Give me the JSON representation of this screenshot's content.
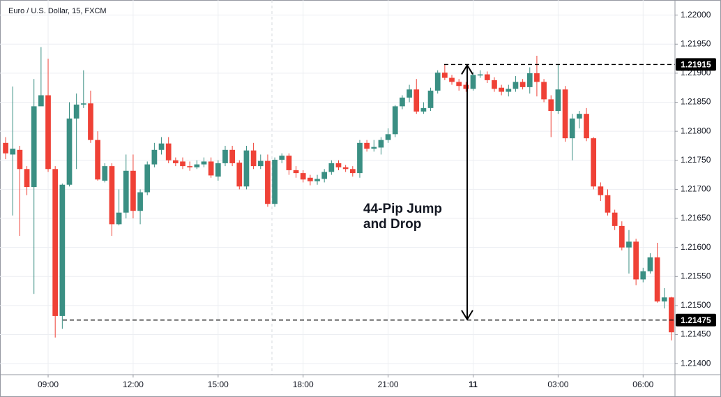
{
  "chart_data": {
    "type": "candlestick",
    "title": "Euro / U.S. Dollar, 15, FXCM",
    "annotation": [
      "44-Pip Jump",
      "and Drop"
    ],
    "categories": [
      null,
      null,
      null,
      null,
      null,
      null,
      "09:00",
      null,
      null,
      null,
      null,
      null,
      null,
      null,
      null,
      null,
      null,
      null,
      "12:00",
      null,
      null,
      null,
      null,
      null,
      null,
      null,
      null,
      null,
      null,
      null,
      "15:00",
      null,
      null,
      null,
      null,
      null,
      null,
      null,
      null,
      null,
      null,
      null,
      "18:00",
      null,
      null,
      null,
      null,
      null,
      null,
      null,
      null,
      null,
      null,
      null,
      "21:00",
      null,
      null,
      null,
      null,
      null,
      null,
      null,
      null,
      null,
      null,
      null,
      "11",
      null,
      null,
      null,
      null,
      null,
      null,
      null,
      null,
      null,
      null,
      null,
      "03:00",
      null,
      null,
      null,
      null,
      null,
      null,
      null,
      null,
      null,
      null,
      null,
      "06:00",
      null,
      null,
      null,
      null
    ],
    "open": [
      1.2178,
      1.2176,
      1.21768,
      1.21735,
      1.21704,
      1.21843,
      1.21862,
      1.21735,
      1.21482,
      1.21708,
      1.21822,
      1.21846,
      1.21848,
      1.21785,
      1.21715,
      1.2174,
      1.2164,
      1.2166,
      1.21732,
      1.21663,
      1.21695,
      1.21743,
      1.21768,
      1.21779,
      1.2175,
      1.21748,
      1.2174,
      1.21738,
      1.21743,
      1.21748,
      1.21722,
      1.21745,
      1.21768,
      1.21746,
      1.21705,
      1.21767,
      1.2174,
      1.21749,
      1.21675,
      1.21751,
      1.21758,
      1.21733,
      1.21728,
      1.2172,
      1.21714,
      1.21718,
      1.2173,
      1.21745,
      1.21738,
      1.21735,
      1.21728,
      1.2178,
      1.2177,
      1.21772,
      1.21785,
      1.21795,
      1.21843,
      1.21858,
      1.21872,
      1.21834,
      1.2184,
      1.2187,
      1.21901,
      1.21892,
      1.21885,
      1.2188,
      1.21873,
      1.21896,
      1.21898,
      1.21888,
      1.21875,
      1.21868,
      1.21873,
      1.21885,
      1.21876,
      1.219,
      1.21885,
      1.21855,
      1.21835,
      1.21872,
      1.21788,
      1.21822,
      1.2183,
      1.21788,
      1.21705,
      1.2169,
      1.2166,
      1.21637,
      1.216,
      1.2161,
      1.21545,
      1.21559,
      1.21583,
      1.21507,
      1.21514
    ],
    "high": [
      1.2179,
      1.21877,
      1.21775,
      1.2174,
      1.2189,
      1.21945,
      1.21925,
      1.2174,
      1.2171,
      1.2185,
      1.21865,
      1.21905,
      1.2187,
      1.218,
      1.21745,
      1.21745,
      1.217,
      1.2176,
      1.2176,
      1.217,
      1.21748,
      1.2178,
      1.2179,
      1.2179,
      1.21755,
      1.21755,
      1.21748,
      1.2175,
      1.21755,
      1.21755,
      1.2175,
      1.21775,
      1.21775,
      1.2175,
      1.21775,
      1.2178,
      1.2176,
      1.2176,
      1.21755,
      1.21762,
      1.21762,
      1.2174,
      1.21733,
      1.21725,
      1.21725,
      1.21735,
      1.2175,
      1.2175,
      1.21742,
      1.2174,
      1.21785,
      1.21785,
      1.21785,
      1.2179,
      1.21805,
      1.21845,
      1.21862,
      1.2188,
      1.2189,
      1.2185,
      1.21875,
      1.21905,
      1.21915,
      1.21897,
      1.2189,
      1.21885,
      1.21902,
      1.21905,
      1.21903,
      1.21893,
      1.2188,
      1.2188,
      1.21895,
      1.2189,
      1.2191,
      1.2193,
      1.2189,
      1.21862,
      1.21915,
      1.21878,
      1.2183,
      1.21835,
      1.2184,
      1.2179,
      1.21712,
      1.217,
      1.21665,
      1.21645,
      1.2163,
      1.21615,
      1.21565,
      1.2159,
      1.21608,
      1.2153,
      1.21515
    ],
    "low": [
      1.21752,
      1.21655,
      1.2162,
      1.2169,
      1.2152,
      1.21845,
      1.2173,
      1.21445,
      1.2146,
      1.21705,
      1.21735,
      1.2184,
      1.2178,
      1.21715,
      1.21712,
      1.2162,
      1.21638,
      1.2165,
      1.2165,
      1.2164,
      1.2169,
      1.21738,
      1.2176,
      1.21745,
      1.2174,
      1.21735,
      1.21732,
      1.21735,
      1.21738,
      1.2172,
      1.21715,
      1.2174,
      1.2174,
      1.217,
      1.217,
      1.21735,
      1.21735,
      1.2167,
      1.2167,
      1.21745,
      1.21725,
      1.2172,
      1.21712,
      1.21707,
      1.21708,
      1.21712,
      1.21725,
      1.21733,
      1.2173,
      1.21722,
      1.2172,
      1.21765,
      1.21765,
      1.2176,
      1.2178,
      1.2179,
      1.21838,
      1.2185,
      1.2183,
      1.2183,
      1.21835,
      1.21865,
      1.21888,
      1.2188,
      1.2187,
      1.21868,
      1.2187,
      1.21892,
      1.21883,
      1.21868,
      1.21862,
      1.2186,
      1.21868,
      1.21872,
      1.21865,
      1.2186,
      1.2185,
      1.2179,
      1.2183,
      1.21782,
      1.2175,
      1.21805,
      1.21783,
      1.217,
      1.2168,
      1.21655,
      1.2163,
      1.21595,
      1.21555,
      1.21535,
      1.2154,
      1.21555,
      1.21505,
      1.21495,
      1.2144
    ],
    "close": [
      1.21762,
      1.2177,
      1.21735,
      1.21704,
      1.21843,
      1.21862,
      1.21735,
      1.21482,
      1.21708,
      1.21822,
      1.21846,
      1.21848,
      1.21785,
      1.21717,
      1.2174,
      1.2164,
      1.2166,
      1.21732,
      1.21663,
      1.21695,
      1.21743,
      1.21768,
      1.21779,
      1.2175,
      1.21745,
      1.2174,
      1.21738,
      1.21743,
      1.21748,
      1.21724,
      1.21745,
      1.21768,
      1.21745,
      1.21705,
      1.21767,
      1.2174,
      1.21749,
      1.21675,
      1.21751,
      1.21758,
      1.21733,
      1.21728,
      1.21717,
      1.21714,
      1.21718,
      1.2173,
      1.21745,
      1.21738,
      1.21735,
      1.21728,
      1.2178,
      1.2177,
      1.21773,
      1.21785,
      1.21795,
      1.21843,
      1.21858,
      1.21872,
      1.21834,
      1.2184,
      1.2187,
      1.21901,
      1.21892,
      1.21885,
      1.21878,
      1.21873,
      1.21897,
      1.21898,
      1.21888,
      1.21873,
      1.21868,
      1.21873,
      1.21885,
      1.21876,
      1.219,
      1.21885,
      1.21855,
      1.21835,
      1.21872,
      1.21788,
      1.21822,
      1.2183,
      1.21788,
      1.21705,
      1.2169,
      1.2166,
      1.21637,
      1.216,
      1.2161,
      1.21545,
      1.21559,
      1.21583,
      1.21507,
      1.21514,
      1.21454
    ],
    "up_color": "#3a8f83",
    "down_color": "#ef4136",
    "levels": [
      1.21915,
      1.21475
    ],
    "ylim": [
      1.21381,
      1.22026
    ],
    "yticks": [
      {
        "value": 1.214,
        "label": "1.21400"
      },
      {
        "value": 1.2145,
        "label": "1.21450"
      },
      {
        "value": 1.215,
        "label": "1.21500"
      },
      {
        "value": 1.2155,
        "label": "1.21550"
      },
      {
        "value": 1.216,
        "label": "1.21600"
      },
      {
        "value": 1.2165,
        "label": "1.21650"
      },
      {
        "value": 1.217,
        "label": "1.21700"
      },
      {
        "value": 1.2175,
        "label": "1.21750"
      },
      {
        "value": 1.218,
        "label": "1.21800"
      },
      {
        "value": 1.2185,
        "label": "1.21850"
      },
      {
        "value": 1.219,
        "label": "1.21900"
      },
      {
        "value": 1.2195,
        "label": "1.21950"
      },
      {
        "value": 1.22,
        "label": "1.22000"
      }
    ],
    "grid": true
  }
}
